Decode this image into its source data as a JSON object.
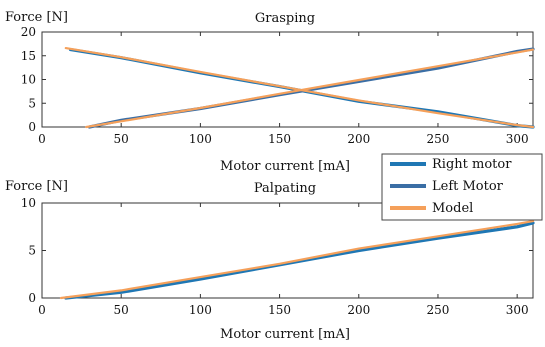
{
  "chart_data": [
    {
      "type": "line",
      "title": "Grasping",
      "xlabel": "Motor current [mA]",
      "ylabel": "Force [N]",
      "xlim": [
        0,
        310
      ],
      "ylim": [
        0,
        20
      ],
      "xticks": [
        0,
        50,
        100,
        150,
        200,
        250,
        300
      ],
      "yticks": [
        0,
        5,
        10,
        15,
        20
      ],
      "grid": false,
      "series": [
        {
          "name": "Right motor",
          "color": "#1f77b4",
          "x": [
            18,
            50,
            100,
            150,
            200,
            250,
            300,
            310
          ],
          "y": [
            16.3,
            14.6,
            11.4,
            8.5,
            5.4,
            3.2,
            0.3,
            0
          ]
        },
        {
          "name": "Left Motor",
          "color": "#3a6ea5",
          "x": [
            30,
            50,
            100,
            150,
            200,
            250,
            300,
            310
          ],
          "y": [
            0,
            1.4,
            3.9,
            6.8,
            9.6,
            12.4,
            15.9,
            16.4
          ]
        },
        {
          "name": "Model",
          "color": "#f5a05a",
          "x": [
            15,
            50,
            100,
            150,
            200,
            250,
            300,
            310
          ],
          "y": [
            16.6,
            14.7,
            11.6,
            8.6,
            5.6,
            2.9,
            0.4,
            0
          ]
        },
        {
          "name": "Model",
          "color": "#f5a05a",
          "x": [
            28,
            50,
            100,
            150,
            200,
            250,
            300,
            310
          ],
          "y": [
            0,
            1.2,
            4.0,
            7.0,
            9.9,
            12.8,
            15.7,
            16.3
          ]
        }
      ],
      "legend": {
        "position": "outside-right",
        "entries": [
          "Right motor",
          "Left Motor",
          "Model"
        ]
      }
    },
    {
      "type": "line",
      "title": "Palpating",
      "xlabel": "Motor current [mA]",
      "ylabel": "Force [N]",
      "xlim": [
        0,
        310
      ],
      "ylim": [
        0,
        10
      ],
      "xticks": [
        0,
        50,
        100,
        150,
        200,
        250,
        300
      ],
      "yticks": [
        0,
        5,
        10
      ],
      "grid": false,
      "series": [
        {
          "name": "Right motor",
          "color": "#1f77b4",
          "x": [
            15,
            50,
            100,
            150,
            200,
            250,
            300,
            310
          ],
          "y": [
            0,
            0.6,
            2.0,
            3.5,
            5.0,
            6.3,
            7.5,
            7.9
          ]
        },
        {
          "name": "Model",
          "color": "#f5a05a",
          "x": [
            12,
            50,
            100,
            150,
            200,
            250,
            300,
            310
          ],
          "y": [
            0,
            0.8,
            2.2,
            3.6,
            5.2,
            6.5,
            7.8,
            8.1
          ]
        }
      ]
    }
  ]
}
